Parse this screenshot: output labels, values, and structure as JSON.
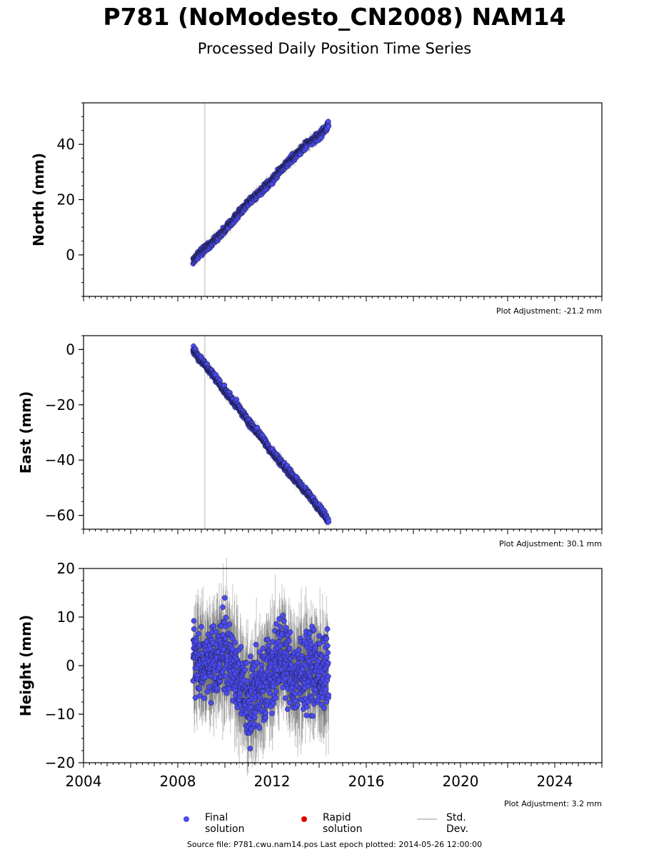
{
  "title": "P781 (NoModesto_CN2008) NAM14",
  "subtitle": "Processed Daily Position Time Series",
  "footer": "Source file: P781.cwu.nam14.pos  Last epoch plotted: 2014-05-26 12:00:00",
  "legend": {
    "final": "Final solution",
    "rapid": "Rapid solution",
    "std": "Std. Dev."
  },
  "colors": {
    "final": "#4b4bf0",
    "rapid": "#e00000",
    "std": "#c8c8c8"
  },
  "chart_data": [
    {
      "type": "scatter",
      "ylabel": "North (mm)",
      "adjustment": "Plot Adjustment: -21.2 mm",
      "xlim": [
        2004.0,
        2026.0
      ],
      "ylim": [
        -15,
        55
      ],
      "yticks": [
        0,
        20,
        40
      ],
      "vline": 2009.15,
      "series": [
        {
          "x": [
            2008.65,
            2009.0,
            2009.5,
            2010.0,
            2010.5,
            2011.0,
            2011.5,
            2012.0,
            2012.5,
            2013.0,
            2013.5,
            2014.0,
            2014.4
          ],
          "y": [
            -2,
            1,
            5,
            9,
            14,
            19,
            23,
            27,
            32,
            36,
            40,
            43,
            47
          ]
        }
      ]
    },
    {
      "type": "scatter",
      "ylabel": "East (mm)",
      "adjustment": "Plot Adjustment: 30.1 mm",
      "xlim": [
        2004.0,
        2026.0
      ],
      "ylim": [
        -65,
        5
      ],
      "yticks": [
        0,
        -20,
        -40,
        -60
      ],
      "vline": 2009.15,
      "series": [
        {
          "x": [
            2008.65,
            2009.0,
            2009.5,
            2010.0,
            2010.5,
            2011.0,
            2011.5,
            2012.0,
            2012.5,
            2013.0,
            2013.5,
            2014.0,
            2014.4
          ],
          "y": [
            0,
            -4,
            -9,
            -15,
            -20,
            -26,
            -31,
            -37,
            -42,
            -47,
            -52,
            -57,
            -62
          ]
        }
      ]
    },
    {
      "type": "scatter",
      "ylabel": "Height (mm)",
      "adjustment": "Plot Adjustment: 3.2 mm",
      "xlim": [
        2004.0,
        2026.0
      ],
      "ylim": [
        -20,
        20
      ],
      "yticks": [
        20,
        10,
        0,
        -10,
        -20
      ],
      "xticks": [
        "2004",
        "2008",
        "2012",
        "2016",
        "2020",
        "2024"
      ],
      "series": [
        {
          "x": [
            2008.65,
            2009.0,
            2009.5,
            2010.0,
            2010.5,
            2011.0,
            2011.5,
            2012.0,
            2012.5,
            2013.0,
            2013.5,
            2014.0,
            2014.4
          ],
          "y": [
            2,
            1,
            0,
            3,
            -2,
            -8,
            -4,
            -1,
            2,
            -3,
            0,
            -2,
            -1
          ]
        }
      ]
    }
  ]
}
